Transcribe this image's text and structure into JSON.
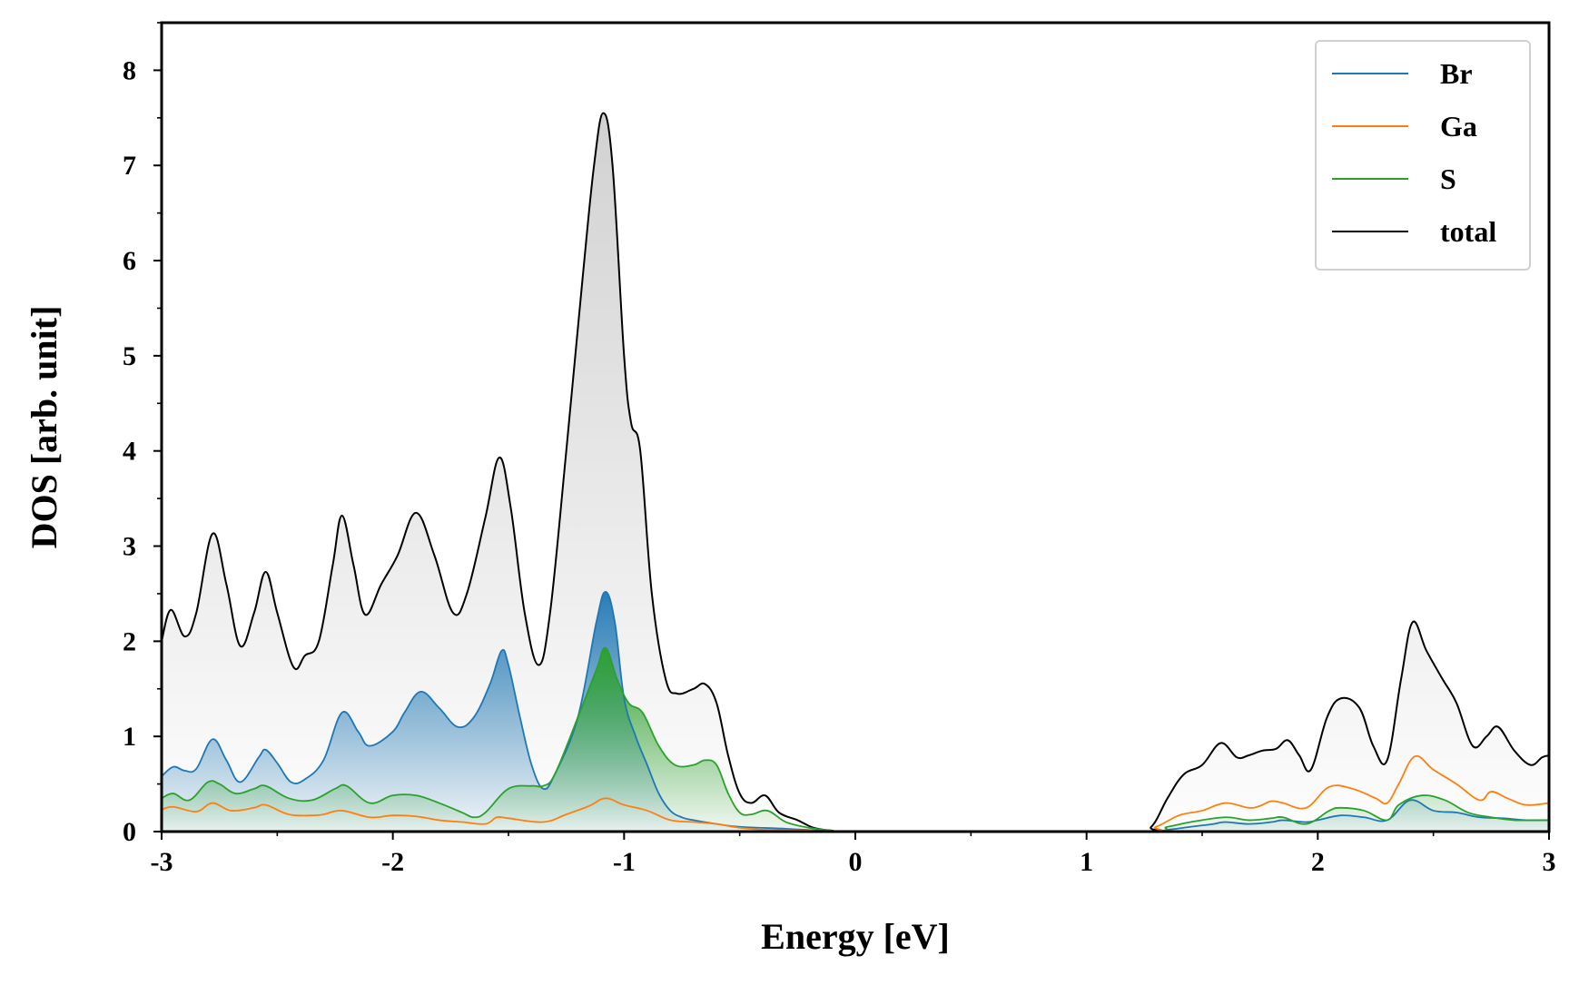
{
  "chart_data": {
    "type": "area",
    "title": "",
    "xlabel": "Energy [eV]",
    "ylabel": "DOS [arb. unit]",
    "xlim": [
      -3,
      3
    ],
    "ylim": [
      0,
      8.5
    ],
    "x_ticks": [
      -3,
      -2,
      -1,
      0,
      1,
      2,
      3
    ],
    "x_tick_labels": [
      "-3",
      "-2",
      "-1",
      "0",
      "1",
      "2",
      "3"
    ],
    "y_ticks": [
      0,
      1,
      2,
      3,
      4,
      5,
      6,
      7,
      8
    ],
    "y_tick_labels": [
      "0",
      "1",
      "2",
      "3",
      "4",
      "5",
      "6",
      "7",
      "8"
    ],
    "legend_position": "top-right",
    "grid": false,
    "series": [
      {
        "name": "Br",
        "color": "#1f77b4",
        "filled": true,
        "points": [
          [
            -3.0,
            0.58
          ],
          [
            -2.95,
            0.68
          ],
          [
            -2.9,
            0.64
          ],
          [
            -2.85,
            0.66
          ],
          [
            -2.78,
            0.97
          ],
          [
            -2.72,
            0.75
          ],
          [
            -2.66,
            0.52
          ],
          [
            -2.58,
            0.78
          ],
          [
            -2.55,
            0.86
          ],
          [
            -2.5,
            0.72
          ],
          [
            -2.44,
            0.52
          ],
          [
            -2.38,
            0.55
          ],
          [
            -2.3,
            0.75
          ],
          [
            -2.22,
            1.25
          ],
          [
            -2.15,
            1.05
          ],
          [
            -2.1,
            0.9
          ],
          [
            -2.0,
            1.05
          ],
          [
            -1.95,
            1.25
          ],
          [
            -1.88,
            1.47
          ],
          [
            -1.8,
            1.3
          ],
          [
            -1.72,
            1.1
          ],
          [
            -1.65,
            1.2
          ],
          [
            -1.58,
            1.55
          ],
          [
            -1.53,
            1.9
          ],
          [
            -1.5,
            1.75
          ],
          [
            -1.45,
            1.2
          ],
          [
            -1.4,
            0.7
          ],
          [
            -1.35,
            0.45
          ],
          [
            -1.3,
            0.6
          ],
          [
            -1.2,
            1.2
          ],
          [
            -1.12,
            2.2
          ],
          [
            -1.08,
            2.52
          ],
          [
            -1.04,
            2.2
          ],
          [
            -1.0,
            1.4
          ],
          [
            -0.95,
            1.0
          ],
          [
            -0.9,
            0.7
          ],
          [
            -0.85,
            0.4
          ],
          [
            -0.8,
            0.22
          ],
          [
            -0.75,
            0.15
          ],
          [
            -0.7,
            0.12
          ],
          [
            -0.6,
            0.08
          ],
          [
            -0.5,
            0.05
          ],
          [
            -0.3,
            0.03
          ],
          [
            -0.15,
            0.01
          ],
          [
            0.0,
            0.0
          ],
          [
            1.2,
            0.0
          ],
          [
            1.35,
            0.02
          ],
          [
            1.45,
            0.05
          ],
          [
            1.55,
            0.08
          ],
          [
            1.6,
            0.1
          ],
          [
            1.7,
            0.08
          ],
          [
            1.8,
            0.1
          ],
          [
            1.85,
            0.12
          ],
          [
            1.95,
            0.1
          ],
          [
            2.0,
            0.12
          ],
          [
            2.1,
            0.17
          ],
          [
            2.2,
            0.15
          ],
          [
            2.3,
            0.12
          ],
          [
            2.4,
            0.33
          ],
          [
            2.5,
            0.22
          ],
          [
            2.6,
            0.2
          ],
          [
            2.7,
            0.15
          ],
          [
            2.8,
            0.14
          ],
          [
            2.9,
            0.12
          ],
          [
            3.0,
            0.12
          ]
        ]
      },
      {
        "name": "Ga",
        "color": "#ff7f0e",
        "filled": false,
        "points": [
          [
            -3.0,
            0.23
          ],
          [
            -2.95,
            0.26
          ],
          [
            -2.85,
            0.21
          ],
          [
            -2.78,
            0.3
          ],
          [
            -2.7,
            0.22
          ],
          [
            -2.6,
            0.25
          ],
          [
            -2.55,
            0.28
          ],
          [
            -2.45,
            0.18
          ],
          [
            -2.35,
            0.17
          ],
          [
            -2.3,
            0.18
          ],
          [
            -2.22,
            0.22
          ],
          [
            -2.1,
            0.15
          ],
          [
            -2.0,
            0.17
          ],
          [
            -1.9,
            0.16
          ],
          [
            -1.8,
            0.12
          ],
          [
            -1.7,
            0.1
          ],
          [
            -1.6,
            0.08
          ],
          [
            -1.55,
            0.15
          ],
          [
            -1.5,
            0.14
          ],
          [
            -1.35,
            0.1
          ],
          [
            -1.25,
            0.18
          ],
          [
            -1.15,
            0.27
          ],
          [
            -1.08,
            0.35
          ],
          [
            -1.0,
            0.28
          ],
          [
            -0.9,
            0.22
          ],
          [
            -0.8,
            0.12
          ],
          [
            -0.7,
            0.1
          ],
          [
            -0.6,
            0.08
          ],
          [
            -0.5,
            0.04
          ],
          [
            -0.4,
            0.02
          ],
          [
            -0.2,
            0.01
          ],
          [
            0.0,
            0.0
          ],
          [
            1.2,
            0.0
          ],
          [
            1.3,
            0.05
          ],
          [
            1.4,
            0.17
          ],
          [
            1.5,
            0.22
          ],
          [
            1.6,
            0.3
          ],
          [
            1.7,
            0.25
          ],
          [
            1.75,
            0.27
          ],
          [
            1.8,
            0.32
          ],
          [
            1.85,
            0.3
          ],
          [
            1.95,
            0.25
          ],
          [
            2.05,
            0.47
          ],
          [
            2.15,
            0.45
          ],
          [
            2.25,
            0.35
          ],
          [
            2.3,
            0.3
          ],
          [
            2.35,
            0.5
          ],
          [
            2.42,
            0.79
          ],
          [
            2.5,
            0.65
          ],
          [
            2.6,
            0.5
          ],
          [
            2.7,
            0.33
          ],
          [
            2.75,
            0.42
          ],
          [
            2.82,
            0.35
          ],
          [
            2.9,
            0.28
          ],
          [
            3.0,
            0.3
          ]
        ]
      },
      {
        "name": "S",
        "color": "#2ca02c",
        "filled": true,
        "points": [
          [
            -3.0,
            0.35
          ],
          [
            -2.95,
            0.4
          ],
          [
            -2.88,
            0.33
          ],
          [
            -2.8,
            0.52
          ],
          [
            -2.75,
            0.5
          ],
          [
            -2.68,
            0.4
          ],
          [
            -2.6,
            0.45
          ],
          [
            -2.55,
            0.48
          ],
          [
            -2.45,
            0.35
          ],
          [
            -2.35,
            0.33
          ],
          [
            -2.25,
            0.45
          ],
          [
            -2.2,
            0.48
          ],
          [
            -2.1,
            0.3
          ],
          [
            -2.0,
            0.38
          ],
          [
            -1.9,
            0.38
          ],
          [
            -1.8,
            0.3
          ],
          [
            -1.7,
            0.2
          ],
          [
            -1.65,
            0.15
          ],
          [
            -1.6,
            0.2
          ],
          [
            -1.5,
            0.45
          ],
          [
            -1.4,
            0.48
          ],
          [
            -1.35,
            0.48
          ],
          [
            -1.3,
            0.6
          ],
          [
            -1.2,
            1.2
          ],
          [
            -1.12,
            1.7
          ],
          [
            -1.08,
            1.93
          ],
          [
            -1.03,
            1.6
          ],
          [
            -0.98,
            1.35
          ],
          [
            -0.92,
            1.25
          ],
          [
            -0.85,
            0.9
          ],
          [
            -0.78,
            0.7
          ],
          [
            -0.7,
            0.7
          ],
          [
            -0.65,
            0.75
          ],
          [
            -0.6,
            0.7
          ],
          [
            -0.55,
            0.4
          ],
          [
            -0.5,
            0.2
          ],
          [
            -0.45,
            0.18
          ],
          [
            -0.38,
            0.22
          ],
          [
            -0.3,
            0.1
          ],
          [
            -0.2,
            0.04
          ],
          [
            -0.1,
            0.01
          ],
          [
            0.0,
            0.0
          ],
          [
            1.2,
            0.0
          ],
          [
            1.35,
            0.05
          ],
          [
            1.45,
            0.1
          ],
          [
            1.6,
            0.15
          ],
          [
            1.7,
            0.12
          ],
          [
            1.8,
            0.14
          ],
          [
            1.85,
            0.15
          ],
          [
            1.95,
            0.08
          ],
          [
            2.05,
            0.22
          ],
          [
            2.1,
            0.25
          ],
          [
            2.2,
            0.22
          ],
          [
            2.3,
            0.12
          ],
          [
            2.35,
            0.28
          ],
          [
            2.45,
            0.38
          ],
          [
            2.55,
            0.33
          ],
          [
            2.65,
            0.2
          ],
          [
            2.75,
            0.15
          ],
          [
            2.85,
            0.12
          ],
          [
            2.95,
            0.12
          ],
          [
            3.0,
            0.12
          ]
        ]
      },
      {
        "name": "total",
        "color": "#000000",
        "filled": true,
        "points": [
          [
            -3.0,
            2.0
          ],
          [
            -2.96,
            2.33
          ],
          [
            -2.9,
            2.05
          ],
          [
            -2.85,
            2.3
          ],
          [
            -2.78,
            3.13
          ],
          [
            -2.72,
            2.6
          ],
          [
            -2.66,
            1.95
          ],
          [
            -2.6,
            2.3
          ],
          [
            -2.55,
            2.73
          ],
          [
            -2.5,
            2.3
          ],
          [
            -2.43,
            1.73
          ],
          [
            -2.38,
            1.85
          ],
          [
            -2.32,
            2.0
          ],
          [
            -2.26,
            2.8
          ],
          [
            -2.22,
            3.32
          ],
          [
            -2.17,
            2.8
          ],
          [
            -2.12,
            2.28
          ],
          [
            -2.05,
            2.6
          ],
          [
            -1.98,
            2.9
          ],
          [
            -1.9,
            3.35
          ],
          [
            -1.82,
            2.9
          ],
          [
            -1.74,
            2.3
          ],
          [
            -1.68,
            2.5
          ],
          [
            -1.6,
            3.3
          ],
          [
            -1.54,
            3.93
          ],
          [
            -1.49,
            3.4
          ],
          [
            -1.43,
            2.3
          ],
          [
            -1.37,
            1.75
          ],
          [
            -1.32,
            2.3
          ],
          [
            -1.25,
            4.0
          ],
          [
            -1.18,
            5.8
          ],
          [
            -1.13,
            7.0
          ],
          [
            -1.09,
            7.55
          ],
          [
            -1.05,
            7.0
          ],
          [
            -1.0,
            5.0
          ],
          [
            -0.97,
            4.3
          ],
          [
            -0.93,
            4.0
          ],
          [
            -0.88,
            2.5
          ],
          [
            -0.82,
            1.6
          ],
          [
            -0.77,
            1.45
          ],
          [
            -0.7,
            1.5
          ],
          [
            -0.65,
            1.55
          ],
          [
            -0.6,
            1.35
          ],
          [
            -0.55,
            0.8
          ],
          [
            -0.5,
            0.4
          ],
          [
            -0.45,
            0.3
          ],
          [
            -0.39,
            0.38
          ],
          [
            -0.33,
            0.2
          ],
          [
            -0.25,
            0.12
          ],
          [
            -0.18,
            0.04
          ],
          [
            -0.1,
            0.01
          ],
          [
            0.0,
            0.0
          ],
          [
            1.2,
            0.0
          ],
          [
            1.28,
            0.05
          ],
          [
            1.35,
            0.35
          ],
          [
            1.42,
            0.6
          ],
          [
            1.5,
            0.7
          ],
          [
            1.58,
            0.93
          ],
          [
            1.65,
            0.78
          ],
          [
            1.7,
            0.8
          ],
          [
            1.76,
            0.85
          ],
          [
            1.82,
            0.87
          ],
          [
            1.87,
            0.96
          ],
          [
            1.92,
            0.8
          ],
          [
            1.97,
            0.65
          ],
          [
            2.04,
            1.2
          ],
          [
            2.1,
            1.4
          ],
          [
            2.18,
            1.3
          ],
          [
            2.24,
            0.9
          ],
          [
            2.3,
            0.75
          ],
          [
            2.36,
            1.6
          ],
          [
            2.41,
            2.2
          ],
          [
            2.47,
            1.9
          ],
          [
            2.54,
            1.6
          ],
          [
            2.6,
            1.35
          ],
          [
            2.67,
            0.9
          ],
          [
            2.73,
            1.0
          ],
          [
            2.78,
            1.1
          ],
          [
            2.85,
            0.85
          ],
          [
            2.92,
            0.7
          ],
          [
            2.97,
            0.78
          ],
          [
            3.0,
            0.8
          ]
        ]
      }
    ]
  }
}
